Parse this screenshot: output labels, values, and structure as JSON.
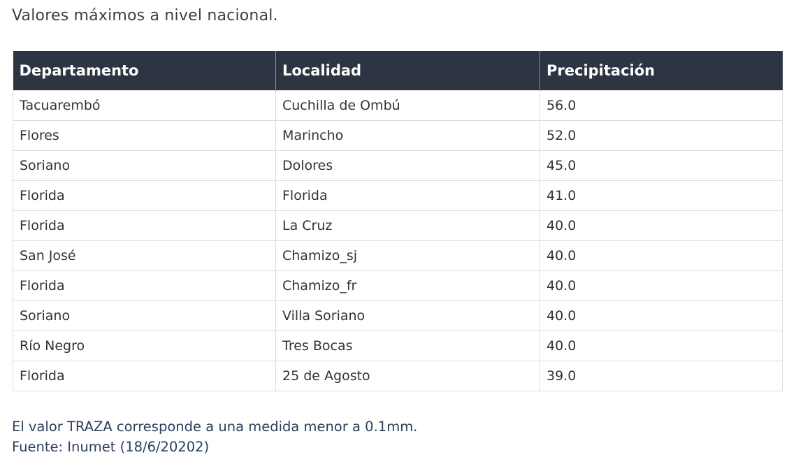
{
  "heading": "Valores máximos a nivel nacional.",
  "table": {
    "headers": [
      "Departamento",
      "Localidad",
      "Precipitación"
    ],
    "rows": [
      [
        "Tacuarembó",
        "Cuchilla de Ombú",
        "56.0"
      ],
      [
        "Flores",
        "Marincho",
        "52.0"
      ],
      [
        "Soriano",
        "Dolores",
        "45.0"
      ],
      [
        "Florida",
        "Florida",
        "41.0"
      ],
      [
        "Florida",
        "La Cruz",
        "40.0"
      ],
      [
        "San José",
        "Chamizo_sj",
        "40.0"
      ],
      [
        "Florida",
        "Chamizo_fr",
        "40.0"
      ],
      [
        "Soriano",
        "Villa Soriano",
        "40.0"
      ],
      [
        "Río Negro",
        "Tres Bocas",
        "40.0"
      ],
      [
        "Florida",
        "25 de Agosto",
        "39.0"
      ]
    ]
  },
  "notes": {
    "line1": "El valor TRAZA corresponde a una medida menor a 0.1mm.",
    "line2": "Fuente: Inumet (18/6/20202)"
  },
  "colors": {
    "header_bg": "#2e3542",
    "header_text": "#ffffff",
    "note_text": "#2b3e5c"
  }
}
